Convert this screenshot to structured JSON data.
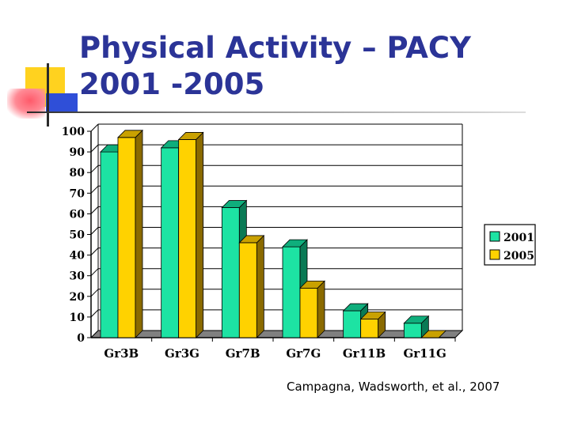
{
  "slide": {
    "title": "Physical Activity – PACY 2001 -2005",
    "citation": "Campagna, Wadsworth, et al., 2007"
  },
  "colors": {
    "series_2001": "#1de3a3",
    "series_2001_side": "#0a7a55",
    "series_2001_top": "#0fae7c",
    "series_2005": "#ffd200",
    "series_2005_side": "#8a6a00",
    "series_2005_top": "#c9a100",
    "title": "#2b3497"
  },
  "chart_data": {
    "type": "bar",
    "title": "",
    "xlabel": "",
    "ylabel": "",
    "ylim": [
      0,
      100
    ],
    "yticks": [
      0,
      10,
      20,
      30,
      40,
      50,
      60,
      70,
      80,
      90,
      100
    ],
    "categories": [
      "Gr3B",
      "Gr3G",
      "Gr7B",
      "Gr7G",
      "Gr11B",
      "Gr11G"
    ],
    "series": [
      {
        "name": "2001",
        "values": [
          90,
          92,
          63,
          44,
          13,
          7
        ]
      },
      {
        "name": "2005",
        "values": [
          97,
          96,
          46,
          24,
          9,
          0
        ]
      }
    ],
    "legend": "right",
    "grid": true,
    "view": "3d"
  }
}
